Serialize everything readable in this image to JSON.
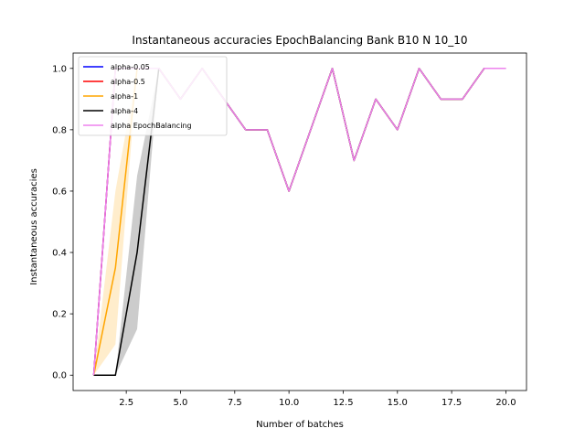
{
  "chart_data": {
    "type": "line",
    "title": "Instantaneous accuracies EpochBalancing Bank B10 N 10_10",
    "xlabel": "Number of batches",
    "ylabel": "Instantaneous accuracies",
    "xlim": [
      0.05,
      20.95
    ],
    "ylim": [
      -0.05,
      1.05
    ],
    "xticks": [
      2.5,
      5.0,
      7.5,
      10.0,
      12.5,
      15.0,
      17.5,
      20.0
    ],
    "xtick_labels": [
      "2.5",
      "5.0",
      "7.5",
      "10.0",
      "12.5",
      "15.0",
      "17.5",
      "20.0"
    ],
    "yticks": [
      0.0,
      0.2,
      0.4,
      0.6,
      0.8,
      1.0
    ],
    "ytick_labels": [
      "0.0",
      "0.2",
      "0.4",
      "0.6",
      "0.8",
      "1.0"
    ],
    "grid": false,
    "legend_position": "top-left",
    "x": [
      1,
      2,
      3,
      4,
      5,
      6,
      7,
      8,
      9,
      10,
      11,
      12,
      13,
      14,
      15,
      16,
      17,
      18,
      19,
      20
    ],
    "series": [
      {
        "name": "alpha-0.05",
        "color": "#0000ff",
        "values": [
          0.0,
          1.0,
          1.0,
          1.0,
          0.9,
          1.0,
          0.9,
          0.8,
          0.8,
          0.6,
          0.8,
          1.0,
          0.7,
          0.9,
          0.8,
          1.0,
          0.9,
          0.9,
          1.0,
          1.0
        ]
      },
      {
        "name": "alpha-0.5",
        "color": "#ff0000",
        "values": [
          0.0,
          1.0,
          1.0,
          1.0,
          0.9,
          1.0,
          0.9,
          0.8,
          0.8,
          0.6,
          0.8,
          1.0,
          0.7,
          0.9,
          0.8,
          1.0,
          0.9,
          0.9,
          1.0,
          1.0
        ]
      },
      {
        "name": "alpha-1",
        "color": "#ffa500",
        "values": [
          0.0,
          0.35,
          1.0,
          1.0,
          0.9,
          1.0,
          0.9,
          0.8,
          0.8,
          0.6,
          0.8,
          1.0,
          0.7,
          0.9,
          0.8,
          1.0,
          0.9,
          0.9,
          1.0,
          1.0
        ],
        "band_lower": [
          0.0,
          0.1,
          1.0,
          1.0,
          0.9,
          1.0,
          0.9,
          0.8,
          0.8,
          0.6,
          0.8,
          1.0,
          0.7,
          0.9,
          0.8,
          1.0,
          0.9,
          0.9,
          1.0,
          1.0
        ],
        "band_upper": [
          0.0,
          0.6,
          1.0,
          1.0,
          0.9,
          1.0,
          0.9,
          0.8,
          0.8,
          0.6,
          0.8,
          1.0,
          0.7,
          0.9,
          0.8,
          1.0,
          0.9,
          0.9,
          1.0,
          1.0
        ]
      },
      {
        "name": "alpha-4",
        "color": "#000000",
        "values": [
          0.0,
          0.0,
          0.4,
          1.0,
          0.9,
          1.0,
          0.9,
          0.8,
          0.8,
          0.6,
          0.8,
          1.0,
          0.7,
          0.9,
          0.8,
          1.0,
          0.9,
          0.9,
          1.0,
          1.0
        ],
        "band_lower": [
          0.0,
          0.0,
          0.15,
          1.0,
          0.9,
          1.0,
          0.9,
          0.8,
          0.8,
          0.6,
          0.8,
          1.0,
          0.7,
          0.9,
          0.8,
          1.0,
          0.9,
          0.9,
          1.0,
          1.0
        ],
        "band_upper": [
          0.0,
          0.0,
          0.65,
          1.0,
          0.9,
          1.0,
          0.9,
          0.8,
          0.8,
          0.6,
          0.8,
          1.0,
          0.7,
          0.9,
          0.8,
          1.0,
          0.9,
          0.9,
          1.0,
          1.0
        ]
      },
      {
        "name": "alpha EpochBalancing",
        "color": "#ee82ee",
        "values": [
          0.0,
          1.0,
          1.0,
          1.0,
          0.9,
          1.0,
          0.9,
          0.8,
          0.8,
          0.6,
          0.8,
          1.0,
          0.7,
          0.9,
          0.8,
          1.0,
          0.9,
          0.9,
          1.0,
          1.0
        ]
      }
    ]
  }
}
